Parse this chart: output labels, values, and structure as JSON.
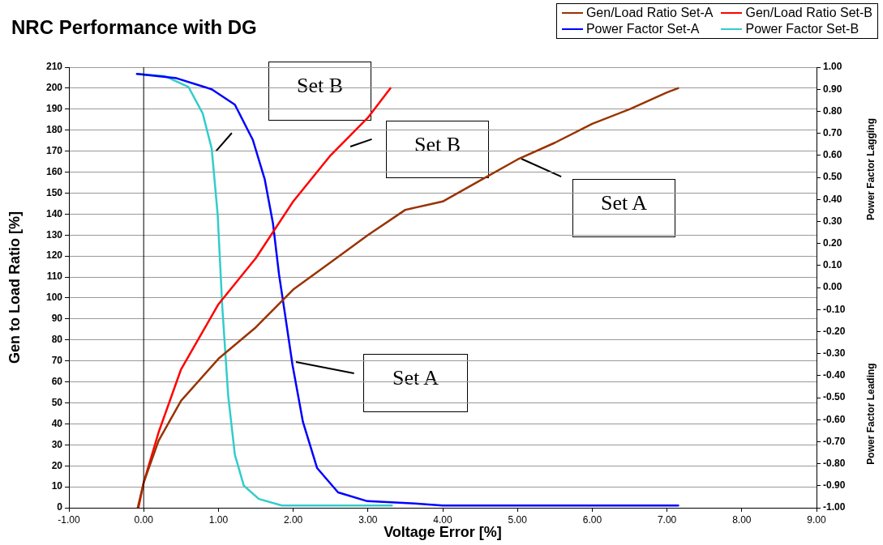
{
  "chart_data": {
    "type": "line",
    "title": "NRC Performance with DG",
    "xlabel": "Voltage Error [%]",
    "ylabel": "Gen to Load Ratio [%]",
    "y2label": "Power Factor Lagging",
    "xlim": [
      -1,
      9
    ],
    "xticks": [
      {
        "value": -1,
        "label": "-1.00"
      },
      {
        "value": 0,
        "label": "0.00"
      },
      {
        "value": 1,
        "label": "1.00"
      },
      {
        "value": 2,
        "label": "2.00"
      },
      {
        "value": 3,
        "label": "3.00"
      },
      {
        "value": 4,
        "label": "4.00"
      },
      {
        "value": 5,
        "label": "5.00"
      },
      {
        "value": 6,
        "label": "6.00"
      },
      {
        "value": 7,
        "label": "7.00"
      },
      {
        "value": 8,
        "label": "8.00"
      },
      {
        "value": 9,
        "label": "9.00"
      }
    ],
    "ylim": [
      0,
      210
    ],
    "yticks": [
      0,
      10,
      20,
      30,
      40,
      50,
      60,
      70,
      80,
      90,
      100,
      110,
      120,
      130,
      140,
      150,
      160,
      170,
      180,
      190,
      200,
      210
    ],
    "y2lim": [
      -1,
      1
    ],
    "y2ticks": [
      {
        "value": 1,
        "label": "1.00"
      },
      {
        "value": 0.9,
        "label": "0.90"
      },
      {
        "value": 0.8,
        "label": "0.80"
      },
      {
        "value": 0.7,
        "label": "0.70"
      },
      {
        "value": 0.6,
        "label": "0.60"
      },
      {
        "value": 0.5,
        "label": "0.50"
      },
      {
        "value": 0.4,
        "label": "0.40"
      },
      {
        "value": 0.3,
        "label": "0.30"
      },
      {
        "value": 0.2,
        "label": "0.20"
      },
      {
        "value": 0.1,
        "label": "0.10"
      },
      {
        "value": 0,
        "label": "0.00"
      },
      {
        "value": -0.1,
        "label": "-0.10"
      },
      {
        "value": -0.2,
        "label": "-0.20"
      },
      {
        "value": -0.3,
        "label": "-0.30"
      },
      {
        "value": -0.4,
        "label": "-0.40"
      },
      {
        "value": -0.5,
        "label": "-0.50"
      },
      {
        "value": -0.6,
        "label": "-0.60"
      },
      {
        "value": -0.7,
        "label": "-0.70"
      },
      {
        "value": -0.8,
        "label": "-0.80"
      },
      {
        "value": -0.9,
        "label": "-0.90"
      },
      {
        "value": -1,
        "label": "-1.00"
      }
    ],
    "grid": "y",
    "legend": "top right",
    "marker": "none",
    "line_style": "solid",
    "ref_lines": [
      {
        "axis": "x",
        "value": 0,
        "color": "#000000"
      }
    ],
    "series": [
      {
        "name": "Gen/Load Ratio Set-A",
        "color": "#993300",
        "x": [
          -0.08,
          0,
          0.2,
          0.5,
          1,
          1.5,
          2,
          2.5,
          3,
          3.5,
          4,
          4.5,
          5,
          5.5,
          6,
          6.5,
          7,
          7.15
        ],
        "values": [
          0,
          12,
          32,
          51,
          71,
          86,
          104,
          117,
          130,
          142,
          146,
          156,
          166,
          174,
          183,
          190,
          198,
          200
        ]
      },
      {
        "name": "Gen/Load Ratio Set-B",
        "color": "#ff0000",
        "x": [
          -0.07,
          0,
          0.2,
          0.5,
          1,
          1.5,
          2,
          2.5,
          3,
          3.3
        ],
        "values": [
          0,
          12,
          36,
          66,
          97,
          119,
          146,
          168,
          186,
          200
        ]
      },
      {
        "name": "Power Factor Set-A",
        "color": "#0000ff",
        "axis": "y2",
        "x": [
          -0.09,
          0.44,
          0.91,
          1.22,
          1.46,
          1.62,
          1.73,
          1.81,
          1.89,
          1.99,
          2.13,
          2.32,
          2.6,
          2.99,
          3.58,
          4,
          7.15
        ],
        "values": [
          0.97,
          0.95,
          0.9,
          0.83,
          0.67,
          0.49,
          0.29,
          0.06,
          -0.12,
          -0.35,
          -0.61,
          -0.82,
          -0.93,
          -0.97,
          -0.98,
          -0.99,
          -0.99
        ]
      },
      {
        "name": "Power Factor Set-B",
        "color": "#33cccc",
        "axis": "y2",
        "x": [
          -0.09,
          0.28,
          0.6,
          0.79,
          0.91,
          0.99,
          1.05,
          1.13,
          1.22,
          1.34,
          1.54,
          1.85,
          3.32
        ],
        "values": [
          0.97,
          0.96,
          0.91,
          0.79,
          0.63,
          0.33,
          -0.08,
          -0.49,
          -0.76,
          -0.9,
          -0.96,
          -0.99,
          -0.99
        ]
      }
    ],
    "annotations": [
      "Set B",
      "Set B",
      "Set A",
      "Set A",
      "Power Factor Leading"
    ]
  }
}
